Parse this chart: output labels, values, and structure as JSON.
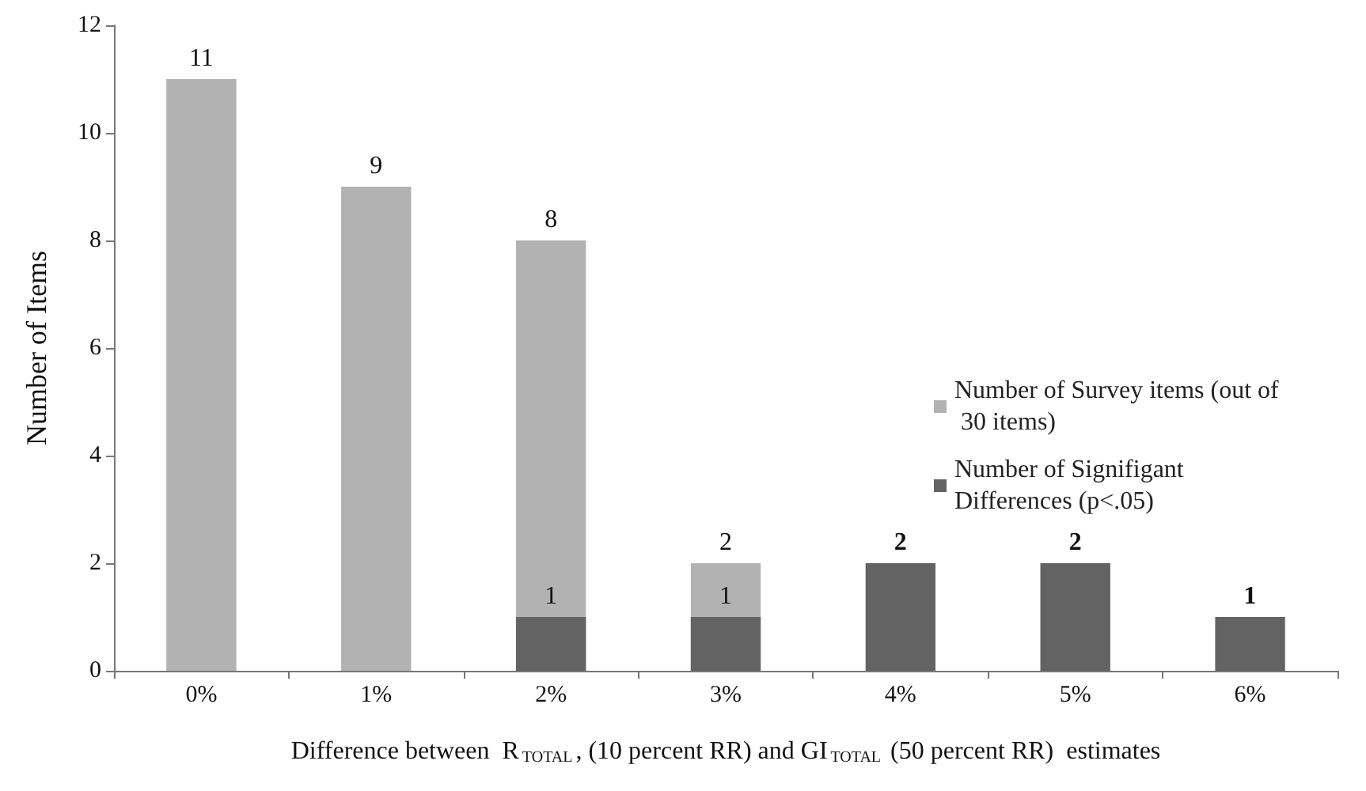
{
  "chart_data": {
    "type": "bar",
    "xlabel": "Difference between  R$_{TOTAL}$, (10 percent RR) and GI$_{TOTAL}$ (50 percent RR)  estimates",
    "ylabel": "Number of Items",
    "categories": [
      "0%",
      "1%",
      "2%",
      "3%",
      "4%",
      "5%",
      "6%"
    ],
    "series": [
      {
        "name": "Number of Survey items (out of 30 items)",
        "color": "#b2b2b2",
        "values": [
          11,
          9,
          8,
          2,
          0,
          0,
          0
        ],
        "value_labels": [
          "11",
          "9",
          "8",
          "2",
          null,
          null,
          null
        ]
      },
      {
        "name": "Number of Signifigant Differences (p<.05)",
        "color": "#636363",
        "values": [
          null,
          null,
          1,
          1,
          2,
          2,
          1
        ],
        "value_labels": [
          null,
          null,
          "1",
          "1",
          "2",
          "2",
          "1"
        ]
      }
    ],
    "ylim": [
      0,
      12
    ],
    "yticks": [
      0,
      2,
      4,
      6,
      8,
      10,
      12
    ],
    "grid": false,
    "legend": "right"
  }
}
